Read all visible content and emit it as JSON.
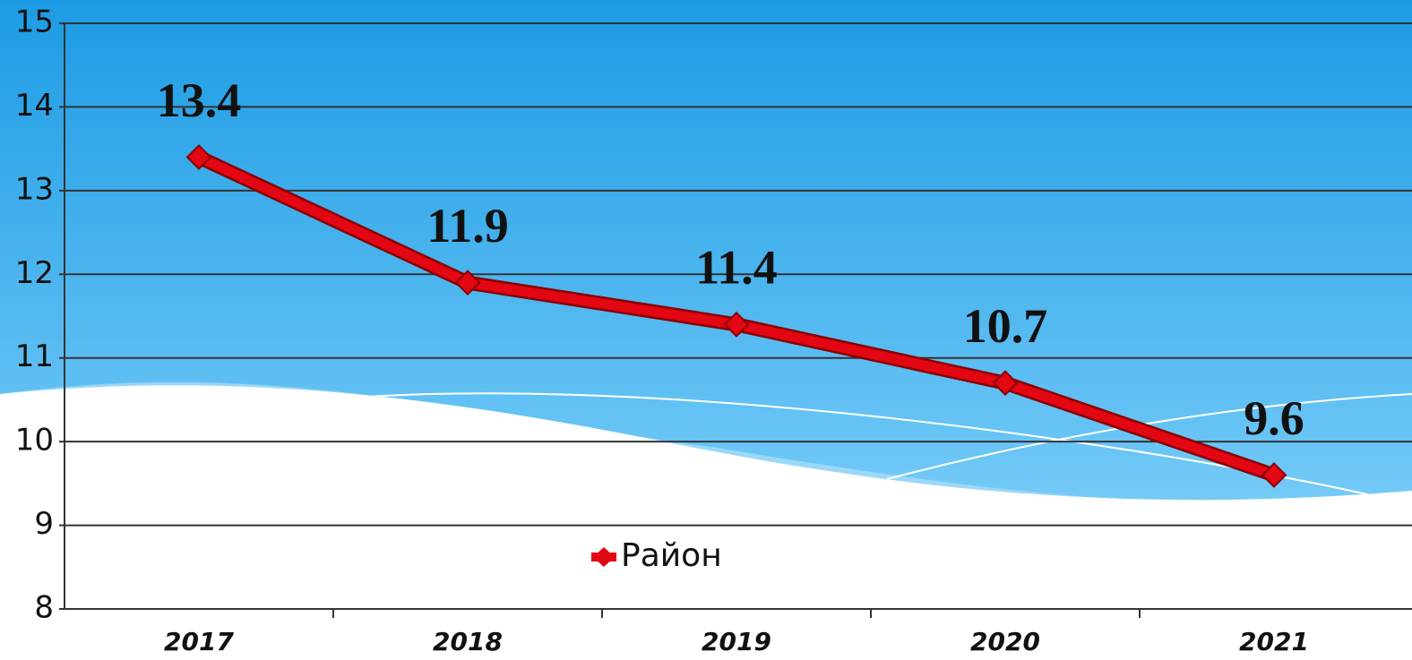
{
  "chart_data": {
    "type": "line",
    "categories": [
      "2017",
      "2018",
      "2019",
      "2020",
      "2021"
    ],
    "series": [
      {
        "name": "Район",
        "color": "#e30613",
        "values": [
          13.4,
          11.9,
          11.4,
          10.7,
          9.6
        ]
      }
    ],
    "ylim": [
      8,
      15
    ],
    "yticks": [
      8,
      9,
      10,
      11,
      12,
      13,
      14,
      15
    ],
    "grid": true,
    "legend": "bottom"
  }
}
